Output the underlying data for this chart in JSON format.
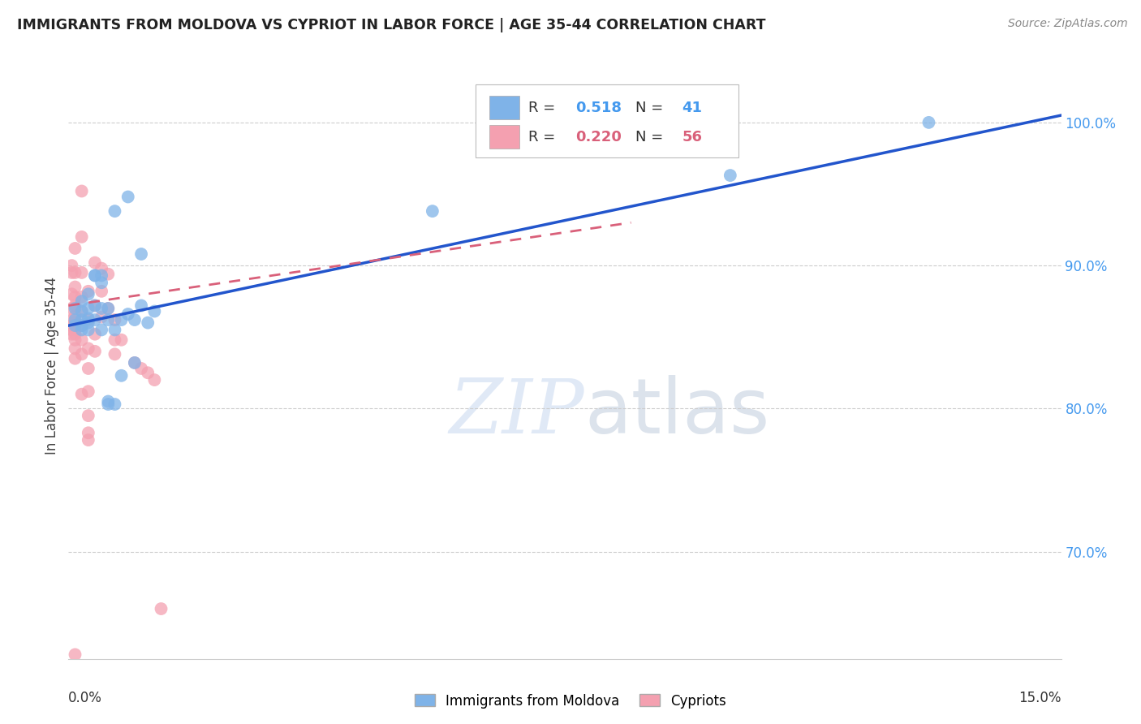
{
  "title": "IMMIGRANTS FROM MOLDOVA VS CYPRIOT IN LABOR FORCE | AGE 35-44 CORRELATION CHART",
  "source": "Source: ZipAtlas.com",
  "ylabel": "In Labor Force | Age 35-44",
  "xlim": [
    0.0,
    0.15
  ],
  "ylim": [
    0.625,
    1.035
  ],
  "yticks": [
    0.7,
    0.8,
    0.9,
    1.0
  ],
  "xticks": [
    0.0,
    0.025,
    0.05,
    0.075,
    0.1,
    0.125,
    0.15
  ],
  "legend_blue_r": "0.518",
  "legend_blue_n": "41",
  "legend_pink_r": "0.220",
  "legend_pink_n": "56",
  "legend_label_blue": "Immigrants from Moldova",
  "legend_label_pink": "Cypriots",
  "blue_color": "#7fb3e8",
  "pink_color": "#f4a0b0",
  "trendline_blue_color": "#2255cc",
  "trendline_pink_color": "#d9607a",
  "blue_scatter": [
    [
      0.001,
      0.862
    ],
    [
      0.001,
      0.87
    ],
    [
      0.001,
      0.858
    ],
    [
      0.002,
      0.868
    ],
    [
      0.002,
      0.855
    ],
    [
      0.002,
      0.875
    ],
    [
      0.002,
      0.862
    ],
    [
      0.003,
      0.88
    ],
    [
      0.003,
      0.86
    ],
    [
      0.003,
      0.855
    ],
    [
      0.003,
      0.863
    ],
    [
      0.004,
      0.872
    ],
    [
      0.004,
      0.862
    ],
    [
      0.004,
      0.893
    ],
    [
      0.004,
      0.893
    ],
    [
      0.005,
      0.87
    ],
    [
      0.005,
      0.888
    ],
    [
      0.005,
      0.855
    ],
    [
      0.006,
      0.862
    ],
    [
      0.006,
      0.805
    ],
    [
      0.006,
      0.803
    ],
    [
      0.007,
      0.938
    ],
    [
      0.007,
      0.855
    ],
    [
      0.007,
      0.803
    ],
    [
      0.008,
      0.862
    ],
    [
      0.008,
      0.823
    ],
    [
      0.009,
      0.866
    ],
    [
      0.009,
      0.948
    ],
    [
      0.01,
      0.862
    ],
    [
      0.01,
      0.832
    ],
    [
      0.011,
      0.872
    ],
    [
      0.011,
      0.908
    ],
    [
      0.012,
      0.86
    ],
    [
      0.013,
      0.868
    ],
    [
      0.055,
      0.938
    ],
    [
      0.1,
      0.963
    ],
    [
      0.13,
      1.0
    ],
    [
      0.005,
      0.893
    ],
    [
      0.006,
      0.87
    ],
    [
      0.003,
      0.87
    ],
    [
      0.002,
      0.858
    ]
  ],
  "pink_scatter": [
    [
      0.0005,
      0.9
    ],
    [
      0.0005,
      0.895
    ],
    [
      0.0005,
      0.88
    ],
    [
      0.0005,
      0.87
    ],
    [
      0.0005,
      0.862
    ],
    [
      0.0005,
      0.858
    ],
    [
      0.0005,
      0.855
    ],
    [
      0.0005,
      0.852
    ],
    [
      0.001,
      0.912
    ],
    [
      0.001,
      0.895
    ],
    [
      0.001,
      0.885
    ],
    [
      0.001,
      0.878
    ],
    [
      0.001,
      0.872
    ],
    [
      0.001,
      0.865
    ],
    [
      0.001,
      0.86
    ],
    [
      0.001,
      0.855
    ],
    [
      0.001,
      0.852
    ],
    [
      0.001,
      0.848
    ],
    [
      0.001,
      0.842
    ],
    [
      0.001,
      0.835
    ],
    [
      0.002,
      0.952
    ],
    [
      0.002,
      0.92
    ],
    [
      0.002,
      0.895
    ],
    [
      0.002,
      0.878
    ],
    [
      0.002,
      0.868
    ],
    [
      0.002,
      0.858
    ],
    [
      0.002,
      0.848
    ],
    [
      0.002,
      0.838
    ],
    [
      0.003,
      0.882
    ],
    [
      0.003,
      0.862
    ],
    [
      0.003,
      0.842
    ],
    [
      0.003,
      0.828
    ],
    [
      0.003,
      0.812
    ],
    [
      0.003,
      0.795
    ],
    [
      0.003,
      0.783
    ],
    [
      0.003,
      0.778
    ],
    [
      0.004,
      0.902
    ],
    [
      0.004,
      0.872
    ],
    [
      0.004,
      0.852
    ],
    [
      0.004,
      0.84
    ],
    [
      0.005,
      0.898
    ],
    [
      0.005,
      0.882
    ],
    [
      0.005,
      0.864
    ],
    [
      0.006,
      0.894
    ],
    [
      0.006,
      0.87
    ],
    [
      0.007,
      0.862
    ],
    [
      0.007,
      0.848
    ],
    [
      0.007,
      0.838
    ],
    [
      0.008,
      0.848
    ],
    [
      0.01,
      0.832
    ],
    [
      0.011,
      0.828
    ],
    [
      0.012,
      0.825
    ],
    [
      0.013,
      0.82
    ],
    [
      0.002,
      0.81
    ],
    [
      0.014,
      0.66
    ],
    [
      0.001,
      0.628
    ]
  ],
  "watermark_zip": "ZIP",
  "watermark_atlas": "atlas",
  "background_color": "#ffffff",
  "grid_color": "#cccccc"
}
